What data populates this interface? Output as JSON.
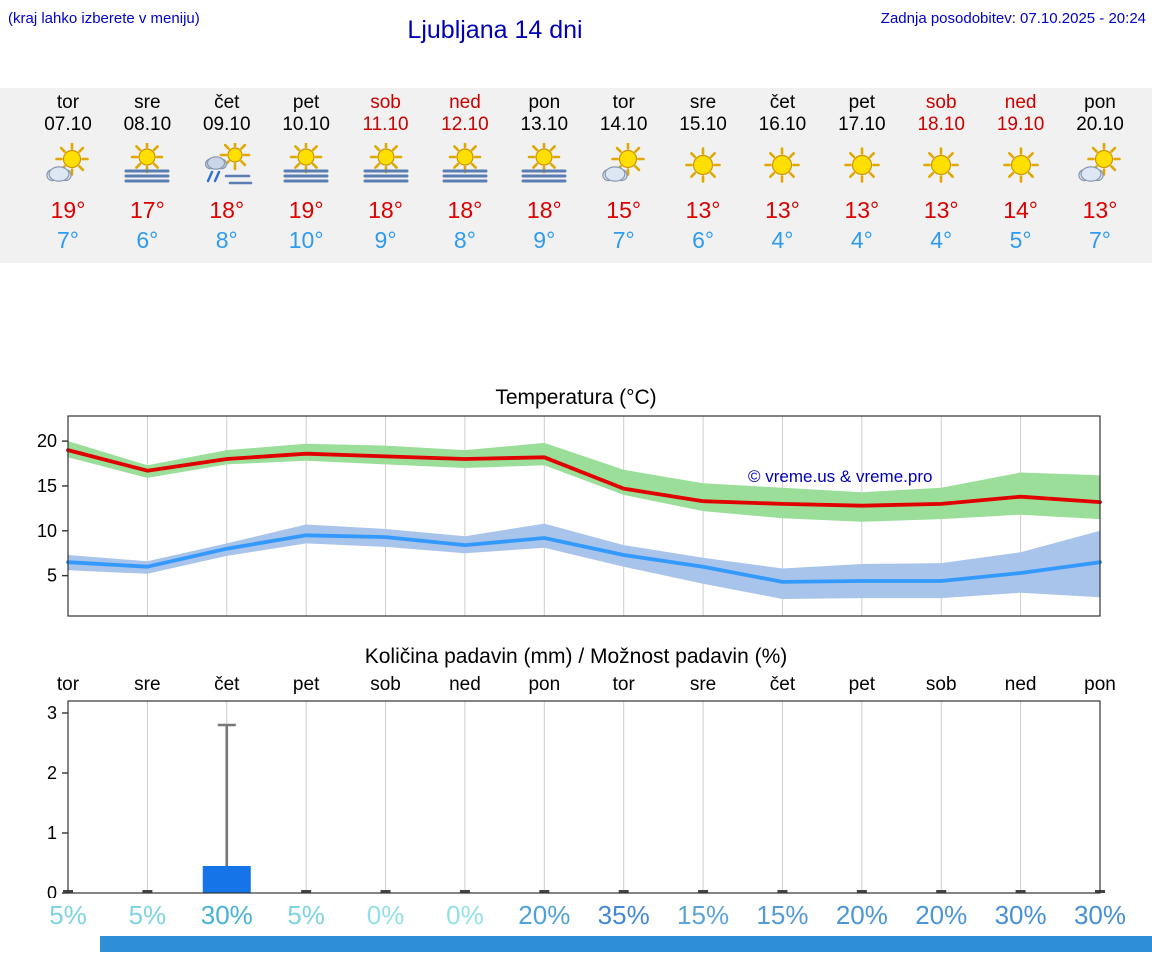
{
  "header": {
    "hint": "(kraj lahko izberete v meniju)",
    "title": "Ljubljana 14 dni",
    "updated": "Zadnja posodobitev: 07.10.2025 - 20:24"
  },
  "colors": {
    "link_blue": "#0000cc",
    "weekend_red": "#cc0000",
    "high_red": "#dd0000",
    "low_blue": "#2e9bf0",
    "strip_bg": "#f1f1f1",
    "bar_blue": "#1474e8",
    "bottom_bar_blue": "#2e8fd8"
  },
  "forecast": {
    "days": [
      {
        "name": "tor",
        "date": "07.10",
        "weekend": false,
        "icon": "sun-cloud",
        "high": "19°",
        "low": "7°"
      },
      {
        "name": "sre",
        "date": "08.10",
        "weekend": false,
        "icon": "sun-fog",
        "high": "17°",
        "low": "6°"
      },
      {
        "name": "čet",
        "date": "09.10",
        "weekend": false,
        "icon": "sun-rain",
        "high": "18°",
        "low": "8°"
      },
      {
        "name": "pet",
        "date": "10.10",
        "weekend": false,
        "icon": "sun-fog",
        "high": "19°",
        "low": "10°"
      },
      {
        "name": "sob",
        "date": "11.10",
        "weekend": true,
        "icon": "sun-fog",
        "high": "18°",
        "low": "9°"
      },
      {
        "name": "ned",
        "date": "12.10",
        "weekend": true,
        "icon": "sun-fog",
        "high": "18°",
        "low": "8°"
      },
      {
        "name": "pon",
        "date": "13.10",
        "weekend": false,
        "icon": "sun-fog",
        "high": "18°",
        "low": "9°"
      },
      {
        "name": "tor",
        "date": "14.10",
        "weekend": false,
        "icon": "sun-cloud",
        "high": "15°",
        "low": "7°"
      },
      {
        "name": "sre",
        "date": "15.10",
        "weekend": false,
        "icon": "sun",
        "high": "13°",
        "low": "6°"
      },
      {
        "name": "čet",
        "date": "16.10",
        "weekend": false,
        "icon": "sun",
        "high": "13°",
        "low": "4°"
      },
      {
        "name": "pet",
        "date": "17.10",
        "weekend": false,
        "icon": "sun",
        "high": "13°",
        "low": "4°"
      },
      {
        "name": "sob",
        "date": "18.10",
        "weekend": true,
        "icon": "sun",
        "high": "13°",
        "low": "4°"
      },
      {
        "name": "ned",
        "date": "19.10",
        "weekend": true,
        "icon": "sun",
        "high": "14°",
        "low": "5°"
      },
      {
        "name": "pon",
        "date": "20.10",
        "weekend": false,
        "icon": "sun-cloud",
        "high": "13°",
        "low": "7°"
      }
    ]
  },
  "chart_data": [
    {
      "type": "line",
      "title": "Temperatura (°C)",
      "x": [
        "tor",
        "sre",
        "čet",
        "pet",
        "sob",
        "ned",
        "pon",
        "tor",
        "sre",
        "čet",
        "pet",
        "sob",
        "ned",
        "pon"
      ],
      "ylim": [
        0.5,
        22.8
      ],
      "yticks": [
        5,
        10,
        15,
        20
      ],
      "grid": "vertical",
      "legend": "none",
      "watermark": "© vreme.us & vreme.pro",
      "series": [
        {
          "name": "max-temp",
          "color": "#e00000",
          "values": [
            19,
            16.7,
            18,
            18.6,
            18.3,
            18,
            18.2,
            14.7,
            13.3,
            13,
            12.8,
            13,
            13.8,
            13.2
          ]
        },
        {
          "name": "min-temp",
          "color": "#3399ff",
          "values": [
            6.5,
            6,
            8,
            9.5,
            9.3,
            8.4,
            9.2,
            7.3,
            6,
            4.3,
            4.4,
            4.4,
            5.3,
            6.5
          ]
        }
      ],
      "bands": [
        {
          "name": "max-range",
          "color": "#9ade9a",
          "upper": [
            20,
            17.3,
            19,
            19.7,
            19.5,
            19,
            19.8,
            16.8,
            15.3,
            14.8,
            14.3,
            14.8,
            16.5,
            16.2
          ],
          "lower": [
            18.2,
            15.9,
            17.4,
            17.8,
            17.4,
            17,
            17.3,
            14,
            12.2,
            11.4,
            11,
            11.3,
            11.8,
            11.3
          ]
        },
        {
          "name": "min-range",
          "color": "#a8c4ea",
          "upper": [
            7.3,
            6.6,
            8.6,
            10.7,
            10.2,
            9.4,
            10.8,
            8.4,
            7,
            5.8,
            6.3,
            6.4,
            7.6,
            10
          ],
          "lower": [
            5.6,
            5.2,
            7.2,
            8.6,
            8.2,
            7.5,
            8.1,
            6,
            4.1,
            2.4,
            2.5,
            2.5,
            3.1,
            2.6
          ]
        }
      ]
    },
    {
      "type": "bar",
      "title": "Količina padavin (mm) / Možnost padavin (%)",
      "categories": [
        "tor",
        "sre",
        "čet",
        "pet",
        "sob",
        "ned",
        "pon",
        "tor",
        "sre",
        "čet",
        "pet",
        "sob",
        "ned",
        "pon"
      ],
      "ylim": [
        0,
        3.2
      ],
      "yticks": [
        0,
        1,
        2,
        3
      ],
      "grid": "vertical",
      "bar_color": "#1474e8",
      "values": [
        0,
        0,
        0.45,
        0,
        0,
        0,
        0,
        0,
        0,
        0,
        0,
        0,
        0,
        0
      ],
      "whisker_max": [
        0,
        0,
        2.8,
        0,
        0,
        0,
        0,
        0,
        0,
        0,
        0,
        0,
        0,
        0
      ],
      "probabilities": [
        {
          "label": "5%",
          "color": "#7dd4e4"
        },
        {
          "label": "5%",
          "color": "#7dd4e4"
        },
        {
          "label": "30%",
          "color": "#46b2d8"
        },
        {
          "label": "5%",
          "color": "#7dd4e4"
        },
        {
          "label": "0%",
          "color": "#93e0ea"
        },
        {
          "label": "0%",
          "color": "#93e0ea"
        },
        {
          "label": "20%",
          "color": "#4fa2d8"
        },
        {
          "label": "35%",
          "color": "#4388d8"
        },
        {
          "label": "15%",
          "color": "#5ba4da"
        },
        {
          "label": "15%",
          "color": "#549ad8"
        },
        {
          "label": "20%",
          "color": "#4b96d6"
        },
        {
          "label": "20%",
          "color": "#4b96d6"
        },
        {
          "label": "30%",
          "color": "#4690d6"
        },
        {
          "label": "30%",
          "color": "#4690d6"
        }
      ]
    }
  ]
}
